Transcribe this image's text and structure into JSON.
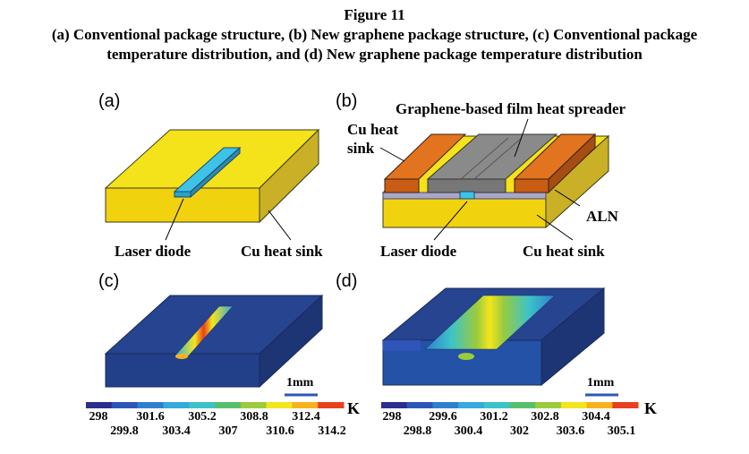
{
  "figure": {
    "title": "Figure 11",
    "caption_line1": "(a) Conventional package structure, (b) New graphene package structure, (c) Conventional package",
    "caption_line2": "temperature distribution, and (d) New graphene package temperature distribution"
  },
  "panels": {
    "a": {
      "letter": "(a)",
      "label_laser": "Laser diode",
      "label_sink": "Cu heat sink"
    },
    "b": {
      "letter": "(b)",
      "label_spreader": "Graphene-based film heat spreader",
      "label_cu_line1": "Cu heat",
      "label_cu_line2": "sink",
      "label_aln": "ALN",
      "label_laser": "Laser diode",
      "label_sink": "Cu heat sink"
    },
    "c": {
      "letter": "(c)",
      "scale": "1mm"
    },
    "d": {
      "letter": "(d)",
      "scale": "1mm"
    }
  },
  "colorbars": {
    "unit": "K",
    "colors": [
      "#2b2e8e",
      "#2f55b8",
      "#2f7fd0",
      "#35aadc",
      "#3cc3c8",
      "#56bf6b",
      "#9ccb3c",
      "#f4e51c",
      "#f7b21e",
      "#e8401d"
    ],
    "c": {
      "top_ticks": [
        "298",
        "301.6",
        "305.2",
        "308.8",
        "312.4"
      ],
      "bottom_ticks": [
        "299.8",
        "303.4",
        "307",
        "310.6",
        "314.2"
      ]
    },
    "d": {
      "top_ticks": [
        "298",
        "299.6",
        "301.2",
        "302.8",
        "304.4"
      ],
      "bottom_ticks": [
        "298.8",
        "300.4",
        "302",
        "303.6",
        "305.1"
      ]
    }
  }
}
